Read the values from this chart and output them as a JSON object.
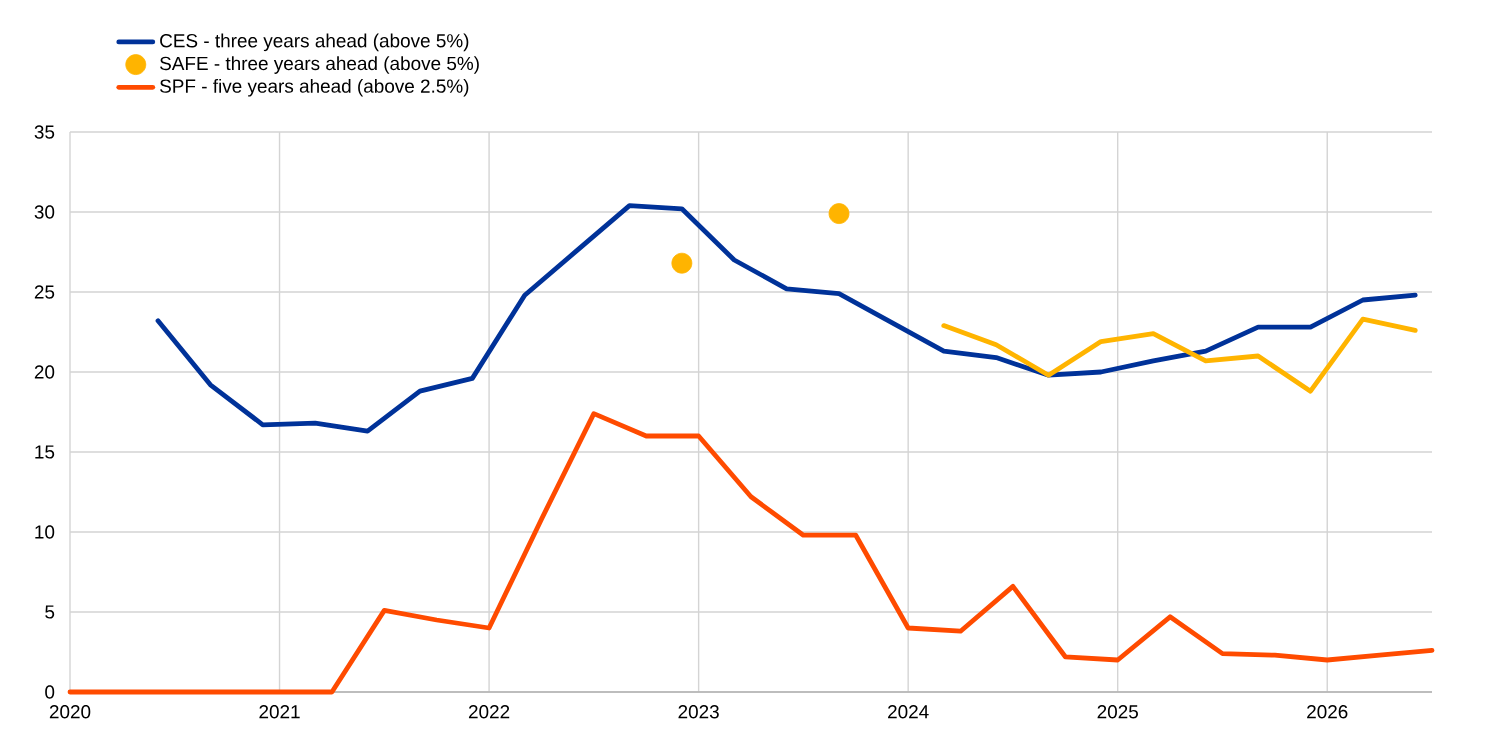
{
  "chart_data": {
    "type": "line",
    "xlim": [
      2020,
      2026.5
    ],
    "xticks": [
      2020,
      2021,
      2022,
      2023,
      2024,
      2025,
      2026
    ],
    "ylim": [
      0,
      35
    ],
    "yticks": [
      0,
      5,
      10,
      15,
      20,
      25,
      30,
      35
    ],
    "grid": true,
    "legend": "top left",
    "series": [
      {
        "name": "CES - three years ahead (above 5%)",
        "color": "#003299",
        "x": [
          2020.42,
          2020.67,
          2020.92,
          2021.17,
          2021.42,
          2021.67,
          2021.92,
          2022.17,
          2022.42,
          2022.67,
          2022.92,
          2023.17,
          2023.42,
          2023.67,
          2023.92,
          2024.17,
          2024.42,
          2024.67,
          2024.92,
          2025.17,
          2025.42,
          2025.67,
          2025.92,
          2026.17,
          2026.42
        ],
        "values": [
          23.2,
          19.2,
          16.7,
          16.8,
          16.3,
          18.8,
          19.6,
          24.8,
          27.6,
          30.4,
          30.2,
          27.0,
          25.2,
          24.9,
          23.1,
          21.3,
          20.9,
          19.8,
          20.0,
          20.7,
          21.3,
          22.8,
          22.8,
          24.5,
          24.8
        ]
      },
      {
        "name": "SAFE - three years ahead (above 5%)",
        "type": "scatter",
        "marker": "circle",
        "color": "#ffb400",
        "x": [
          2022.92,
          2023.67
        ],
        "values": [
          26.8,
          29.9
        ]
      },
      {
        "color": "#ffb400",
        "x": [
          2024.17,
          2024.42,
          2024.67,
          2024.92,
          2025.17,
          2025.42,
          2025.67,
          2025.92,
          2026.17,
          2026.42
        ],
        "values": [
          22.9,
          21.7,
          19.8,
          21.9,
          22.4,
          20.7,
          21.0,
          18.8,
          23.3,
          22.6
        ]
      },
      {
        "name": "SPF - five years ahead (above 2.5%)",
        "color": "#ff4b00",
        "x": [
          2020,
          2020.25,
          2020.5,
          2020.75,
          2021,
          2021.25,
          2021.5,
          2021.75,
          2022,
          2022.25,
          2022.5,
          2022.75,
          2023,
          2023.25,
          2023.5,
          2023.75,
          2024,
          2024.25,
          2024.5,
          2024.75,
          2025,
          2025.25,
          2025.5,
          2025.75,
          2026,
          2026.25,
          2026.5
        ],
        "values": [
          0,
          0,
          0,
          0,
          0,
          0,
          5.1,
          4.5,
          4.0,
          10.8,
          17.4,
          16.0,
          16.0,
          12.2,
          9.8,
          9.8,
          4.0,
          3.8,
          6.6,
          2.2,
          2.0,
          4.7,
          2.4,
          2.3,
          2.0,
          2.3,
          2.6
        ]
      }
    ]
  }
}
